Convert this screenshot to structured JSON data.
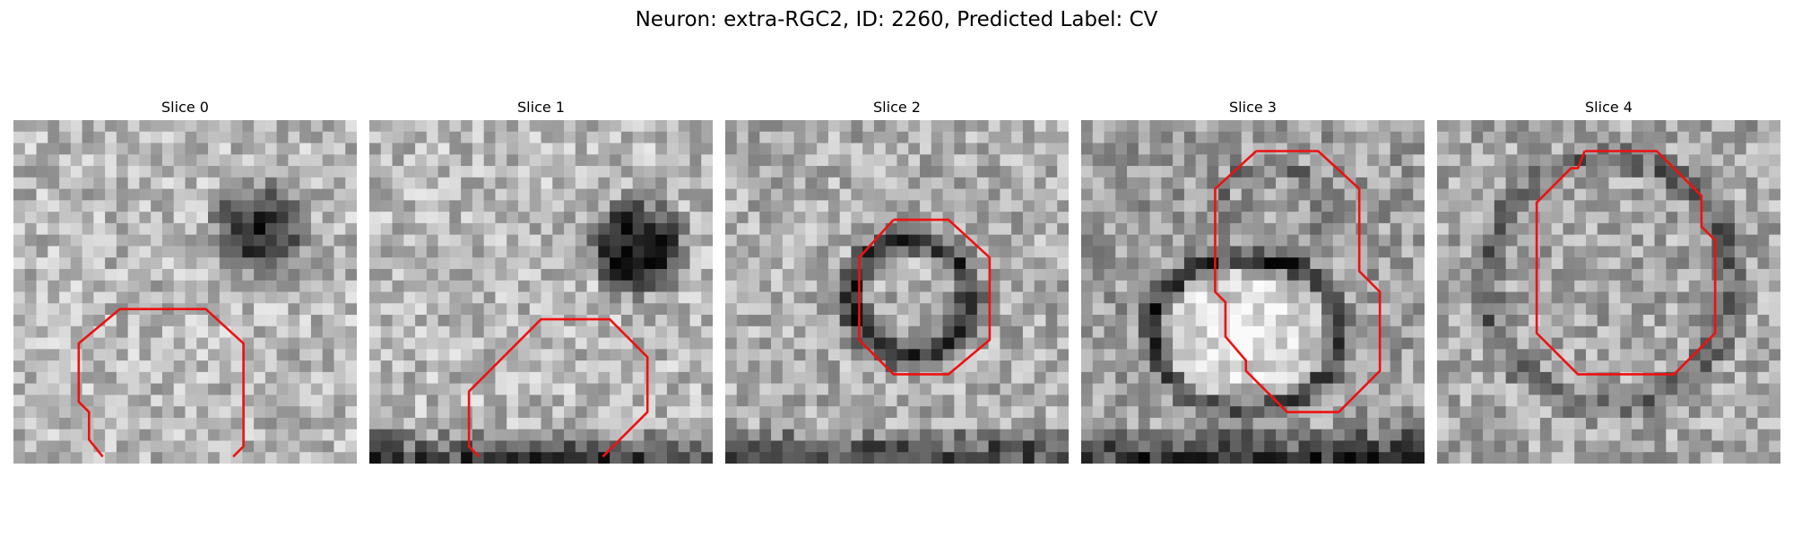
{
  "figure": {
    "title": "Neuron: extra-RGC2, ID: 2260, Predicted Label: CV",
    "grid_size": 30,
    "contour_color": "#ee1111"
  },
  "panels": [
    {
      "title": "Slice 0",
      "scene": {
        "blob_cx": 0.72,
        "blob_cy": 0.32,
        "blob_r": 0.17,
        "blob_dark": 0.55,
        "base": 0.72,
        "ring": false,
        "seed": 11,
        "bottom_dark": 0.0
      },
      "contour": [
        [
          0.26,
          0.98
        ],
        [
          0.22,
          0.93
        ],
        [
          0.22,
          0.85
        ],
        [
          0.19,
          0.82
        ],
        [
          0.19,
          0.65
        ],
        [
          0.31,
          0.55
        ],
        [
          0.56,
          0.55
        ],
        [
          0.67,
          0.65
        ],
        [
          0.67,
          0.95
        ],
        [
          0.64,
          0.98
        ]
      ]
    },
    {
      "title": "Slice 1",
      "scene": {
        "blob_cx": 0.78,
        "blob_cy": 0.37,
        "blob_r": 0.17,
        "blob_dark": 0.65,
        "base": 0.72,
        "ring": false,
        "seed": 23,
        "bottom_dark": 0.45
      },
      "contour": [
        [
          0.32,
          0.98
        ],
        [
          0.29,
          0.95
        ],
        [
          0.29,
          0.79
        ],
        [
          0.5,
          0.58
        ],
        [
          0.7,
          0.58
        ],
        [
          0.81,
          0.69
        ],
        [
          0.81,
          0.85
        ],
        [
          0.68,
          0.98
        ]
      ]
    },
    {
      "title": "Slice 2",
      "scene": {
        "ring": true,
        "ring_cx": 0.54,
        "ring_cy": 0.52,
        "ring_r": 0.17,
        "ring_w": 0.06,
        "ring_dark": 0.55,
        "base": 0.68,
        "seed": 37,
        "bottom_dark": 0.35
      },
      "contour": [
        [
          0.49,
          0.29
        ],
        [
          0.65,
          0.29
        ],
        [
          0.77,
          0.4
        ],
        [
          0.77,
          0.64
        ],
        [
          0.65,
          0.74
        ],
        [
          0.49,
          0.74
        ],
        [
          0.39,
          0.64
        ],
        [
          0.39,
          0.4
        ]
      ]
    },
    {
      "title": "Slice 3",
      "scene": {
        "ring": false,
        "bright": true,
        "blob_cx": 0.48,
        "blob_cy": 0.62,
        "blob_r": 0.2,
        "base": 0.62,
        "seed": 51,
        "bottom_dark": 0.4,
        "arc": true
      },
      "contour": [
        [
          0.51,
          0.09
        ],
        [
          0.69,
          0.09
        ],
        [
          0.81,
          0.2
        ],
        [
          0.81,
          0.44
        ],
        [
          0.87,
          0.5
        ],
        [
          0.87,
          0.73
        ],
        [
          0.75,
          0.85
        ],
        [
          0.6,
          0.85
        ],
        [
          0.48,
          0.73
        ],
        [
          0.48,
          0.7
        ],
        [
          0.42,
          0.63
        ],
        [
          0.42,
          0.53
        ],
        [
          0.39,
          0.5
        ],
        [
          0.39,
          0.2
        ]
      ]
    },
    {
      "title": "Slice 4",
      "scene": {
        "ring": true,
        "ring_cx": 0.5,
        "ring_cy": 0.47,
        "ring_r": 0.36,
        "ring_w": 0.06,
        "ring_dark": 0.3,
        "base": 0.66,
        "seed": 67,
        "bottom_dark": 0.0
      },
      "contour": [
        [
          0.43,
          0.09
        ],
        [
          0.64,
          0.09
        ],
        [
          0.77,
          0.22
        ],
        [
          0.77,
          0.31
        ],
        [
          0.81,
          0.35
        ],
        [
          0.81,
          0.62
        ],
        [
          0.69,
          0.74
        ],
        [
          0.41,
          0.74
        ],
        [
          0.29,
          0.62
        ],
        [
          0.29,
          0.24
        ],
        [
          0.39,
          0.14
        ],
        [
          0.41,
          0.14
        ]
      ]
    }
  ]
}
